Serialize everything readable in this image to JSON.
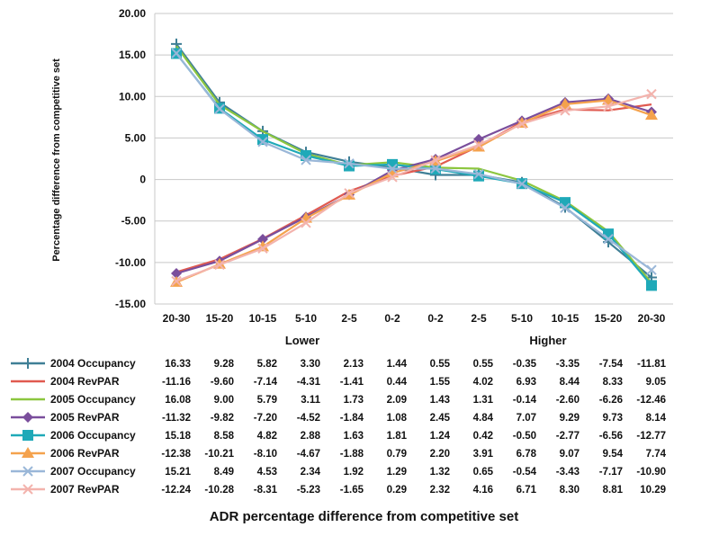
{
  "chart_data": {
    "type": "line",
    "ylabel": "Percentage difference from competitive set",
    "xlabel": "ADR percentage difference from competitive set",
    "ylim": [
      -15,
      20
    ],
    "yticks": [
      20,
      15,
      10,
      5,
      0,
      -5,
      -10,
      -15
    ],
    "ytick_labels": [
      "20.00",
      "15.00",
      "10.00",
      "5.00",
      "0",
      "-5.00",
      "-10.00",
      "-15.00"
    ],
    "grid": true,
    "categories": [
      "20-30",
      "15-20",
      "10-15",
      "5-10",
      "2-5",
      "0-2",
      "0-2",
      "2-5",
      "5-10",
      "10-15",
      "15-20",
      "20-30"
    ],
    "groups": [
      "Lower",
      "Higher"
    ],
    "series": [
      {
        "name": "2004 Occupancy",
        "color": "#3f7f96",
        "marker": "plus",
        "values": [
          16.33,
          9.28,
          5.82,
          3.3,
          2.13,
          1.44,
          0.55,
          0.55,
          -0.35,
          -3.35,
          -7.54,
          -11.81
        ]
      },
      {
        "name": "2004 RevPAR",
        "color": "#e05a50",
        "marker": "none",
        "values": [
          -11.16,
          -9.6,
          -7.14,
          -4.31,
          -1.41,
          0.44,
          1.55,
          4.02,
          6.93,
          8.44,
          8.33,
          9.05
        ]
      },
      {
        "name": "2005 Occupancy",
        "color": "#8cc63f",
        "marker": "none",
        "values": [
          16.08,
          9.0,
          5.79,
          3.11,
          1.73,
          2.09,
          1.43,
          1.31,
          -0.14,
          -2.6,
          -6.26,
          -12.46
        ]
      },
      {
        "name": "2005 RevPAR",
        "color": "#7a4e9c",
        "marker": "diamond",
        "values": [
          -11.32,
          -9.82,
          -7.2,
          -4.52,
          -1.84,
          1.08,
          2.45,
          4.84,
          7.07,
          9.29,
          9.73,
          8.14
        ]
      },
      {
        "name": "2006 Occupancy",
        "color": "#1fa9b8",
        "marker": "square",
        "values": [
          15.18,
          8.58,
          4.82,
          2.88,
          1.63,
          1.81,
          1.24,
          0.42,
          -0.5,
          -2.77,
          -6.56,
          -12.77
        ]
      },
      {
        "name": "2006 RevPAR",
        "color": "#f4a24d",
        "marker": "triangle",
        "values": [
          -12.38,
          -10.21,
          -8.1,
          -4.67,
          -1.88,
          0.79,
          2.2,
          3.91,
          6.78,
          9.07,
          9.54,
          7.74
        ]
      },
      {
        "name": "2007 Occupancy",
        "color": "#9ab7d8",
        "marker": "x",
        "values": [
          15.21,
          8.49,
          4.53,
          2.34,
          1.92,
          1.29,
          1.32,
          0.65,
          -0.54,
          -3.43,
          -7.17,
          -10.9
        ]
      },
      {
        "name": "2007 RevPAR",
        "color": "#f3b3ad",
        "marker": "x",
        "values": [
          -12.24,
          -10.28,
          -8.31,
          -5.23,
          -1.65,
          0.29,
          2.32,
          4.16,
          6.71,
          8.3,
          8.81,
          10.29
        ]
      }
    ]
  }
}
